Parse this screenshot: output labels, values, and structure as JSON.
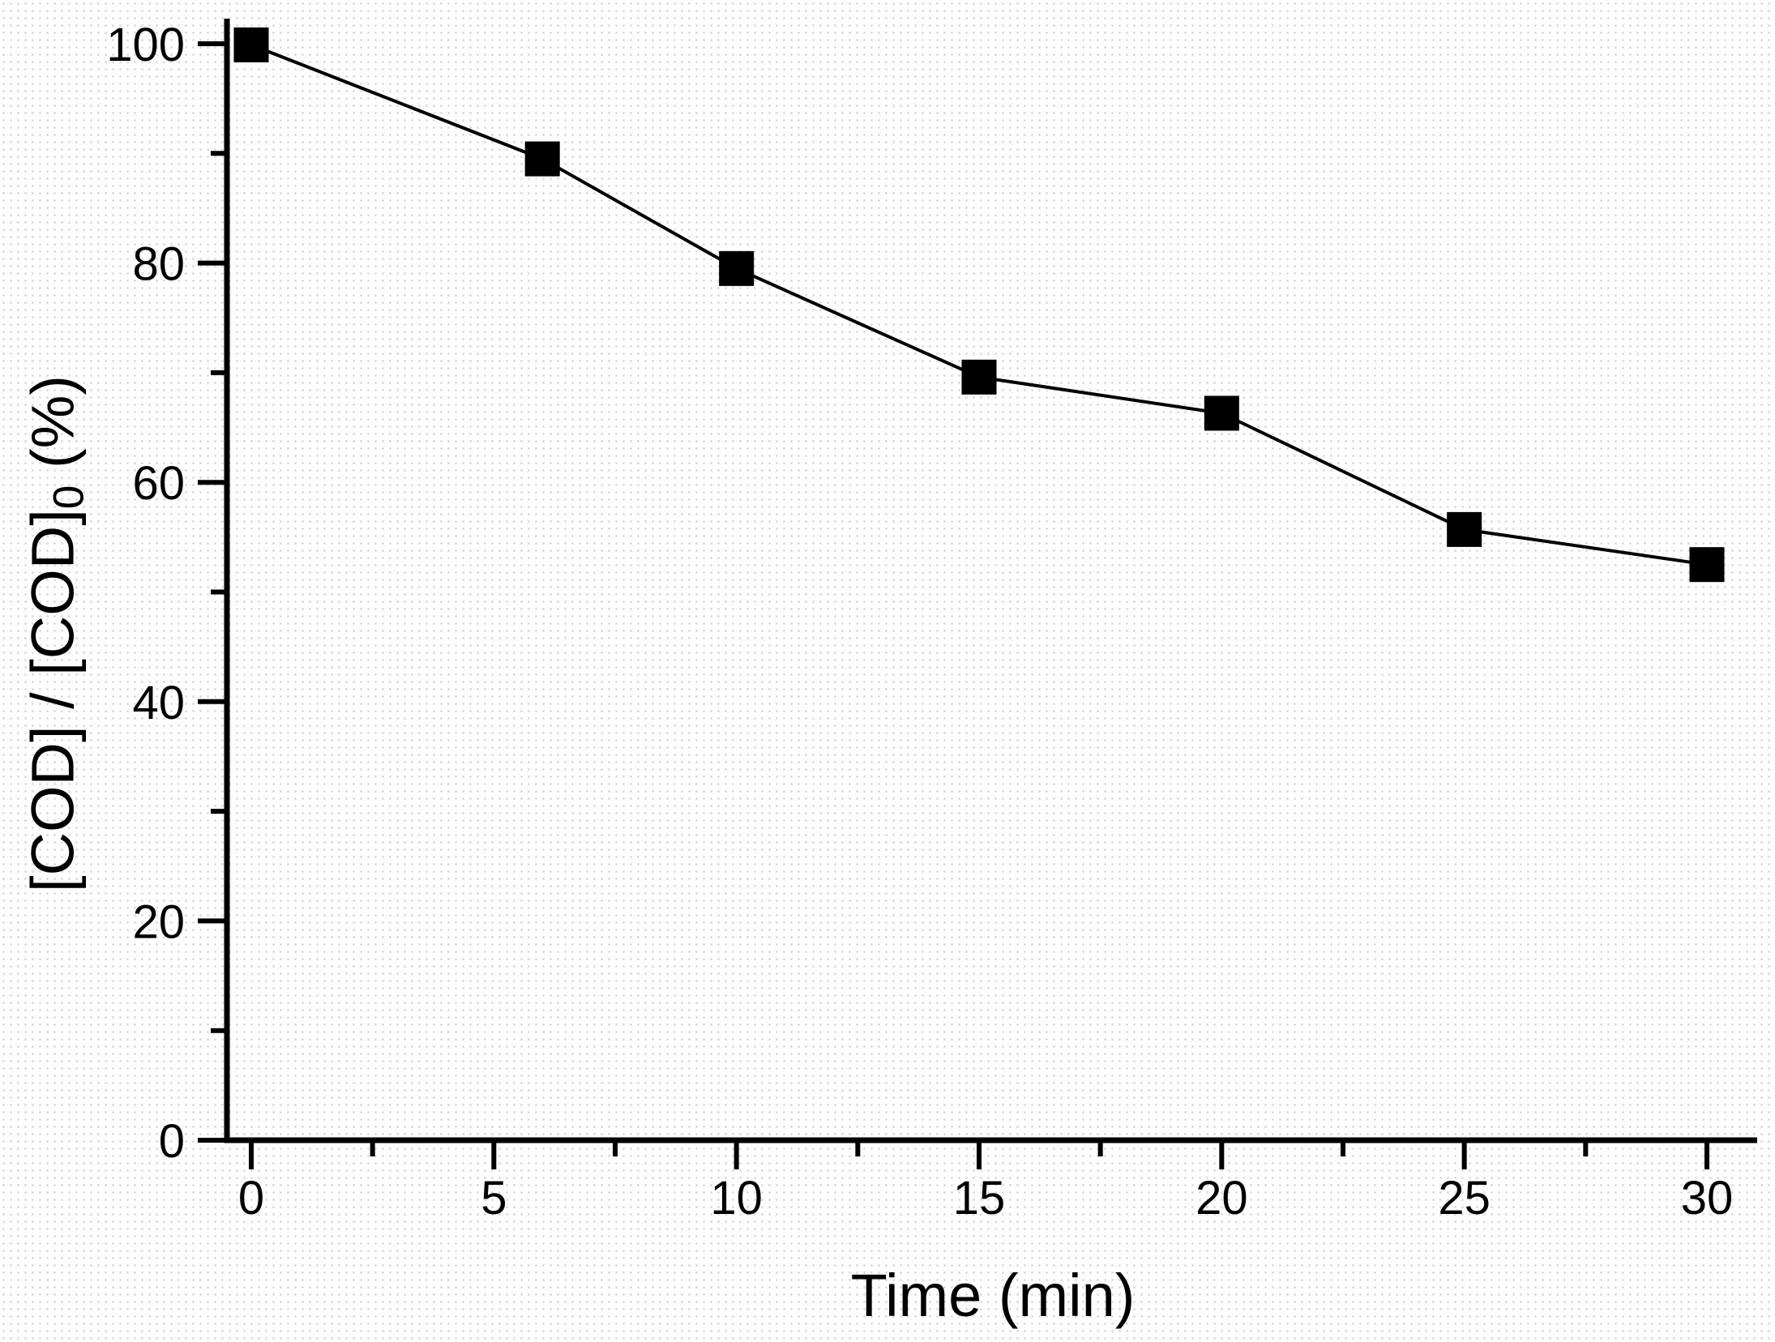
{
  "chart_data": {
    "type": "line",
    "title": "",
    "xlabel": "Time (min)",
    "ylabel": "[COD] / [COD]0 (%)",
    "ylabel_parts": {
      "main": "[COD] / [COD]",
      "sub": "0",
      "unit": " (%)"
    },
    "x": [
      0,
      6,
      10,
      15,
      20,
      25,
      30
    ],
    "y": [
      99.9,
      89.5,
      79.5,
      69.6,
      66.3,
      55.7,
      52.5
    ],
    "xlim": [
      0,
      30
    ],
    "ylim": [
      0,
      100
    ],
    "x_ticks": [
      0,
      5,
      10,
      15,
      20,
      25,
      30
    ],
    "x_tick_labels": [
      "0",
      "5",
      "10",
      "15",
      "20",
      "25",
      "30"
    ],
    "y_ticks": [
      0,
      20,
      40,
      60,
      80,
      100
    ],
    "y_tick_labels": [
      "0",
      "20",
      "40",
      "60",
      "80",
      "100"
    ],
    "x_minor_ticks": [
      2.5,
      7.5,
      12.5,
      17.5,
      22.5,
      27.5
    ],
    "y_minor_ticks": [
      10,
      30,
      50,
      70,
      90
    ],
    "marker": "filled-square",
    "line_color": "#000000",
    "marker_color": "#000000",
    "axis_color": "#000000",
    "grid": false,
    "legend": "none"
  }
}
